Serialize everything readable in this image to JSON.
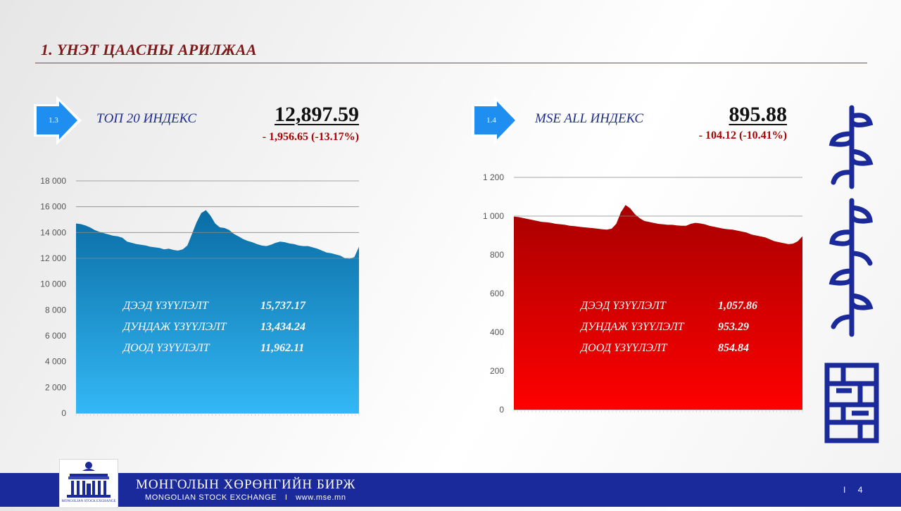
{
  "slide": {
    "title": "1. ҮНЭТ ЦААСНЫ АРИЛЖАА",
    "page_number": "4"
  },
  "left_panel": {
    "badge": "1.3",
    "index_name": "ТОП 20 ИНДЕКС",
    "value": "12,897.59",
    "change": "- 1,956.65 (-13.17%)",
    "stats": [
      {
        "label": "ДЭЭД ҮЗҮҮЛЭЛТ",
        "value": "15,737.17"
      },
      {
        "label": "ДУНДАЖ ҮЗҮҮЛЭЛТ",
        "value": "13,434.24"
      },
      {
        "label": "ДООД ҮЗҮҮЛЭЛТ",
        "value": "11,962.11"
      }
    ]
  },
  "right_panel": {
    "badge": "1.4",
    "index_name": "MSE ALL ИНДЕКС",
    "value": "895.88",
    "change": "- 104.12 (-10.41%)",
    "stats": [
      {
        "label": "ДЭЭД ҮЗҮҮЛЭЛТ",
        "value": "1,057.86"
      },
      {
        "label": "ДУНДАЖ ҮЗҮҮЛЭЛТ",
        "value": "953.29"
      },
      {
        "label": "ДООД ҮЗҮҮЛЭЛТ",
        "value": "854.84"
      }
    ]
  },
  "chart_data": [
    {
      "type": "area",
      "ylim": [
        0,
        18000
      ],
      "yticks": [
        0,
        2000,
        4000,
        6000,
        8000,
        10000,
        12000,
        14000,
        16000,
        18000
      ],
      "ytick_labels": [
        "0",
        "2 000",
        "4 000",
        "6 000",
        "8 000",
        "10 000",
        "12 000",
        "14 000",
        "16 000",
        "18 000"
      ],
      "gridlines": [
        12000,
        14000,
        16000,
        18000
      ],
      "grid": true,
      "values": [
        14700,
        14650,
        14550,
        14400,
        14200,
        14050,
        13950,
        13850,
        13750,
        13700,
        13600,
        13300,
        13200,
        13100,
        13050,
        13000,
        12900,
        12850,
        12800,
        12700,
        12750,
        12650,
        12600,
        12700,
        13000,
        13900,
        14800,
        15500,
        15737,
        15300,
        14700,
        14400,
        14350,
        14200,
        13900,
        13700,
        13500,
        13350,
        13250,
        13100,
        13000,
        12950,
        13050,
        13200,
        13300,
        13250,
        13150,
        13100,
        13000,
        12950,
        12950,
        12850,
        12750,
        12600,
        12450,
        12400,
        12300,
        12200,
        12000,
        11962,
        12100,
        12900
      ],
      "color_top": "#0a6ca4",
      "color_bottom": "#33b8f5"
    },
    {
      "type": "area",
      "ylim": [
        0,
        1200
      ],
      "yticks": [
        0,
        200,
        400,
        600,
        800,
        1000,
        1200
      ],
      "ytick_labels": [
        "0",
        "200",
        "400",
        "600",
        "800",
        "1 000",
        "1 200"
      ],
      "gridlines": [
        1000,
        1200
      ],
      "grid": true,
      "values": [
        997,
        995,
        990,
        985,
        980,
        975,
        970,
        968,
        965,
        960,
        958,
        955,
        950,
        948,
        945,
        942,
        940,
        938,
        935,
        932,
        930,
        935,
        960,
        1020,
        1057,
        1040,
        1010,
        990,
        975,
        970,
        965,
        960,
        958,
        955,
        955,
        952,
        950,
        950,
        960,
        965,
        962,
        958,
        950,
        945,
        940,
        935,
        932,
        930,
        925,
        920,
        915,
        905,
        900,
        895,
        890,
        880,
        870,
        865,
        860,
        855,
        858,
        870,
        896
      ],
      "color_top": "#a80000",
      "color_bottom": "#ff0000"
    }
  ],
  "footer": {
    "exchange_name_mn": "МОНГОЛЫН  ХӨРӨНГИЙН  БИРЖ",
    "exchange_name_en": "MONGOLIAN  STOCK  EXCHANGE",
    "separator": "I",
    "website": "www.mse.mn",
    "page_separator": "I",
    "logo_text": "MONGOLIAN STOCK EXCHANGE"
  }
}
